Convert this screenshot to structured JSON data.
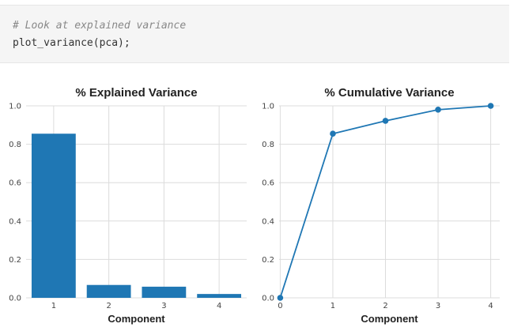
{
  "code_cell": {
    "comment": "# Look at explained variance",
    "code": "plot_variance(pca);"
  },
  "colors": {
    "series": "#1f77b4",
    "grid": "#dcdcdc",
    "code_background": "#f5f5f5"
  },
  "chart_data": [
    {
      "type": "bar",
      "title": "% Explained Variance",
      "xlabel": "Component",
      "ylabel": "",
      "categories": [
        "1",
        "2",
        "3",
        "4"
      ],
      "values": [
        0.855,
        0.067,
        0.058,
        0.02
      ],
      "ylim": [
        0,
        1.0
      ],
      "yticks": [
        "0.0",
        "0.2",
        "0.4",
        "0.6",
        "0.8",
        "1.0"
      ],
      "grid": true
    },
    {
      "type": "line",
      "title": "% Cumulative Variance",
      "xlabel": "Component",
      "ylabel": "",
      "x": [
        0,
        1,
        2,
        3,
        4
      ],
      "xticks": [
        "0",
        "1",
        "2",
        "3",
        "4"
      ],
      "values": [
        0.0,
        0.855,
        0.922,
        0.98,
        1.0
      ],
      "ylim": [
        0,
        1.0
      ],
      "yticks": [
        "0.0",
        "0.2",
        "0.4",
        "0.6",
        "0.8",
        "1.0"
      ],
      "grid": true,
      "markers": true
    }
  ]
}
